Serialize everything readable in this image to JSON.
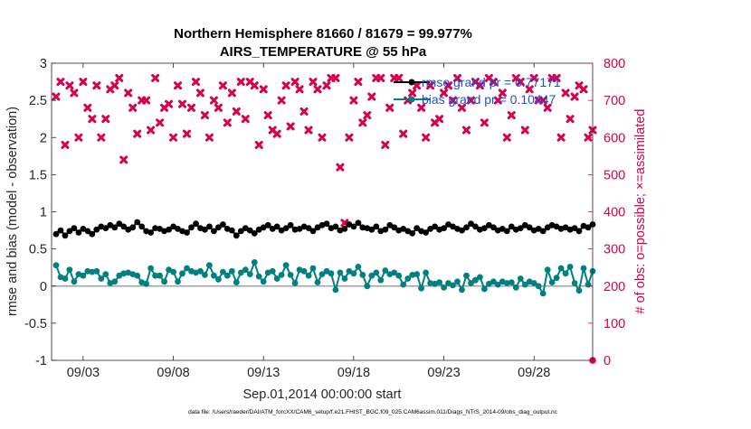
{
  "chart_data": {
    "type": "line",
    "title": "Northern Hemisphere 81660 / 81679 = 99.977%",
    "subtitle": "AIRS_TEMPERATURE @ 55 hPa",
    "xlabel": "Sep.01,2014 00:00:00 start",
    "ylabel_left": "rmse and bias (model - observation)",
    "ylabel_right": "# of obs: o=possible; ×=assimilated",
    "footer": "data file: /Users/raeder/DAI/ATM_forcXX/CAM6_setup/f.e21.FHIST_BGC.f09_025.CAM6assim.011/Diags_NTrS_2014-09/obs_diag_output.nc",
    "x_tick_labels": [
      "09/03",
      "09/08",
      "09/13",
      "09/18",
      "09/23",
      "09/28"
    ],
    "x_tick_days": [
      3,
      8,
      13,
      18,
      23,
      28
    ],
    "xlim_days": [
      1.25,
      31.25
    ],
    "ylim_left": [
      -1,
      3
    ],
    "yticks_left": [
      "-1",
      "-0.5",
      "0",
      "0.5",
      "1",
      "1.5",
      "2",
      "2.5",
      "3"
    ],
    "ylim_right": [
      0,
      800
    ],
    "yticks_right": [
      "0",
      "100",
      "200",
      "300",
      "400",
      "500",
      "600",
      "700",
      "800"
    ],
    "legend": {
      "placement": "top-right",
      "rmse_label": "rmse grand pr = 0.77171",
      "bias_label": "bias grand pr = 0.10447"
    },
    "colors": {
      "rmse": "#000000",
      "bias": "#008080",
      "obs": "#d6004f",
      "legend_text": "#1e4fd8",
      "zero_line": "#a0a0a0"
    },
    "rmse": [
      0.7,
      0.75,
      0.68,
      0.74,
      0.78,
      0.72,
      0.77,
      0.74,
      0.7,
      0.76,
      0.8,
      0.78,
      0.82,
      0.79,
      0.84,
      0.8,
      0.76,
      0.79,
      0.86,
      0.8,
      0.74,
      0.72,
      0.78,
      0.77,
      0.74,
      0.76,
      0.8,
      0.77,
      0.74,
      0.72,
      0.79,
      0.84,
      0.78,
      0.76,
      0.8,
      0.74,
      0.79,
      0.83,
      0.77,
      0.75,
      0.68,
      0.74,
      0.78,
      0.75,
      0.71,
      0.76,
      0.79,
      0.82,
      0.77,
      0.8,
      0.75,
      0.78,
      0.82,
      0.76,
      0.77,
      0.8,
      0.78,
      0.74,
      0.79,
      0.82,
      0.84,
      0.78,
      0.8,
      0.75,
      0.77,
      0.83,
      0.8,
      0.85,
      0.79,
      0.78,
      0.76,
      0.8,
      0.74,
      0.76,
      0.82,
      0.79,
      0.75,
      0.77,
      0.74,
      0.71,
      0.78,
      0.74,
      0.72,
      0.77,
      0.8,
      0.76,
      0.78,
      0.83,
      0.8,
      0.77,
      0.75,
      0.79,
      0.84,
      0.8,
      0.76,
      0.78,
      0.82,
      0.79,
      0.75,
      0.77,
      0.74,
      0.8,
      0.76,
      0.78,
      0.82,
      0.79,
      0.75,
      0.77,
      0.74,
      0.79,
      0.82,
      0.8,
      0.77,
      0.79,
      0.76,
      0.78,
      0.74,
      0.81,
      0.79,
      0.83
    ],
    "bias": [
      0.28,
      0.12,
      0.1,
      0.22,
      0.06,
      0.16,
      0.14,
      0.2,
      0.19,
      0.2,
      0.1,
      0.16,
      0.04,
      0.06,
      0.14,
      0.17,
      0.18,
      0.16,
      0.14,
      0.05,
      0.03,
      0.24,
      0.14,
      0.14,
      0.06,
      0.22,
      0.19,
      0.06,
      0.17,
      0.24,
      0.2,
      0.18,
      0.2,
      0.15,
      0.28,
      0.14,
      0.09,
      0.19,
      0.14,
      0.2,
      0.05,
      0.18,
      0.22,
      0.16,
      0.32,
      0.13,
      0.06,
      0.18,
      0.2,
      0.1,
      0.15,
      0.28,
      0.15,
      0.04,
      0.22,
      0.2,
      0.14,
      0.24,
      0.05,
      0.16,
      0.2,
      0.17,
      -0.05,
      0.18,
      0.1,
      0.2,
      0.17,
      0.26,
      0.15,
      0.0,
      0.14,
      0.18,
      0.08,
      0.21,
      0.16,
      0.18,
      0.14,
      0.02,
      0.1,
      0.15,
      0.16,
      -0.03,
      0.18,
      0.04,
      0.03,
      0.05,
      -0.02,
      0.04,
      0.01,
      0.06,
      -0.05,
      0.14,
      0.04,
      0.08,
      0.12,
      -0.04,
      0.03,
      0.06,
      0.02,
      0.06,
      0.04,
      0.05,
      -0.02,
      0.1,
      0.02,
      0.06,
      0.04,
      0.0,
      -0.1,
      0.22,
      0.05,
      0.11,
      0.24,
      0.17,
      0.26,
      0.04,
      -0.06,
      0.24,
      0.02,
      0.2
    ],
    "obs_assimilated": [
      710,
      750,
      580,
      740,
      720,
      600,
      750,
      680,
      650,
      740,
      600,
      650,
      730,
      740,
      760,
      540,
      720,
      680,
      610,
      700,
      700,
      620,
      760,
      640,
      680,
      690,
      600,
      740,
      690,
      610,
      680,
      750,
      720,
      660,
      600,
      700,
      680,
      740,
      640,
      720,
      670,
      750,
      650,
      750,
      740,
      580,
      730,
      660,
      620,
      610,
      700,
      740,
      630,
      750,
      730,
      670,
      620,
      750,
      730,
      600,
      740,
      760,
      760,
      520,
      370,
      600,
      700,
      750,
      640,
      660,
      710,
      760,
      760,
      580,
      680,
      760,
      760,
      610,
      700,
      720,
      740,
      680,
      600,
      740,
      640,
      650,
      720,
      740,
      700,
      760,
      680,
      620,
      700,
      750,
      740,
      640,
      760,
      750,
      700,
      720,
      600,
      660,
      760,
      750,
      620,
      730,
      760,
      700,
      700,
      680,
      760,
      760,
      600,
      720,
      650,
      710,
      740,
      730,
      600,
      620
    ]
  }
}
